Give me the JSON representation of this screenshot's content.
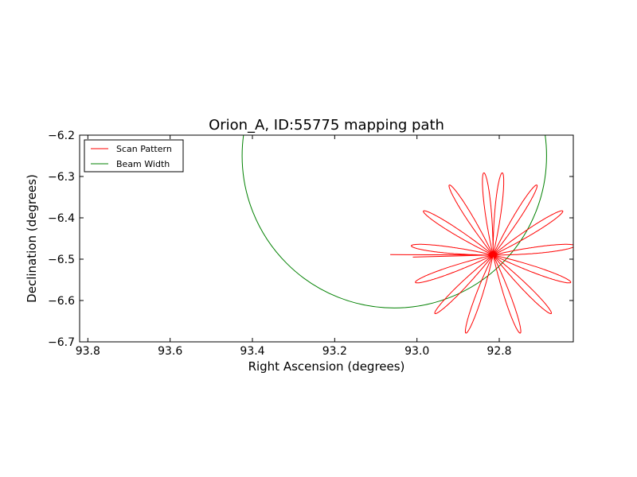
{
  "chart_data": {
    "type": "line",
    "title": "Orion_A, ID:55775 mapping path",
    "xlabel": "Right Ascension (degrees)",
    "ylabel": "Declination (degrees)",
    "xlim": [
      93.82,
      92.62
    ],
    "ylim": [
      -6.7,
      -6.2
    ],
    "x_inverted": true,
    "xticks": [
      93.8,
      93.6,
      93.4,
      93.2,
      93.0,
      92.8
    ],
    "xtick_labels": [
      "93.8",
      "93.6",
      "93.4",
      "93.2",
      "93.0",
      "92.8"
    ],
    "yticks": [
      -6.2,
      -6.3,
      -6.4,
      -6.5,
      -6.6,
      -6.7
    ],
    "ytick_labels": [
      "−6.2",
      "−6.3",
      "−6.4",
      "−6.5",
      "−6.6",
      "−6.7"
    ],
    "grid": false,
    "legend_position": "upper-left",
    "series": [
      {
        "name": "Scan Pattern",
        "kind": "rose-curve",
        "color": "#ff0000",
        "center": [
          92.815,
          -6.49
        ],
        "radius": 0.2,
        "petals": 14,
        "start": [
          93.065,
          -6.489
        ],
        "end": [
          93.01,
          -6.495
        ]
      },
      {
        "name": "Beam Width",
        "kind": "circle",
        "color": "#008000",
        "center": [
          93.055,
          -6.25
        ],
        "radius_ra": 0.37,
        "radius_dec": 0.368
      }
    ]
  }
}
